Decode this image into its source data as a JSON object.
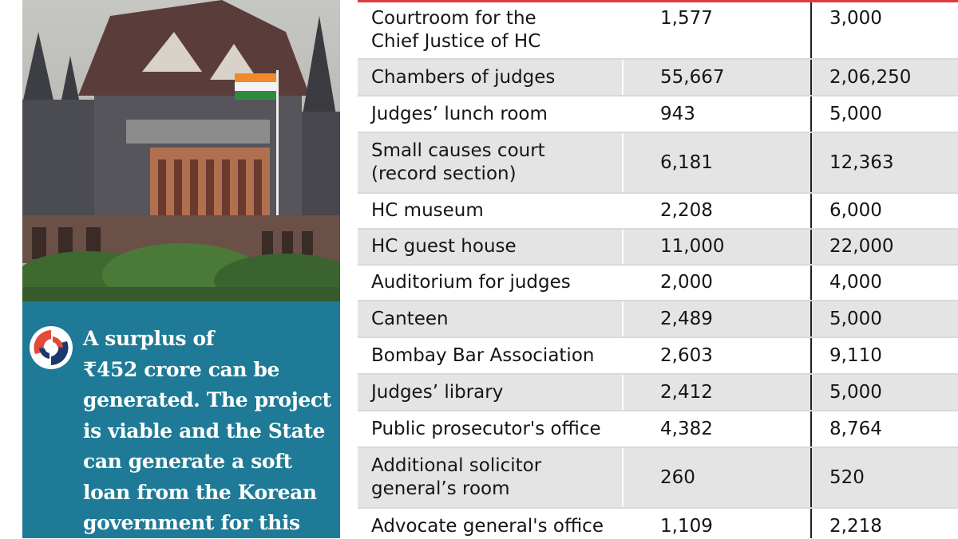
{
  "callout": {
    "quote_lines": "A surplus of\n₹452 crore can be\ngenerated. The project\nis viable and the State\ncan generate a soft\nloan from the Korean\ngovernment for this",
    "accent_colors": [
      "#e24b3c",
      "#1a3a6e",
      "#ffffff"
    ]
  },
  "photo": {
    "icon": "bombay-high-court-building-photo"
  },
  "table": {
    "rows": [
      {
        "name": "Courtroom for the\nChief Justice of HC",
        "a": "1,577",
        "b": "3,000",
        "h": 71,
        "shade": "white"
      },
      {
        "name": "Chambers of judges",
        "a": "55,667",
        "b": "2,06,250",
        "h": 46,
        "shade": "grey"
      },
      {
        "name": "Judges’ lunch room",
        "a": "943",
        "b": "5,000",
        "h": 46,
        "shade": "white"
      },
      {
        "name": "Small causes court\n(record section)",
        "a": "6,181",
        "b": "12,363",
        "h": 76,
        "shade": "grey"
      },
      {
        "name": "HC museum",
        "a": "2,208",
        "b": "6,000",
        "h": 45,
        "shade": "white"
      },
      {
        "name": "HC guest house",
        "a": "11,000",
        "b": "22,000",
        "h": 45,
        "shade": "grey"
      },
      {
        "name": "Auditorium for judges",
        "a": "2,000",
        "b": "4,000",
        "h": 45,
        "shade": "white"
      },
      {
        "name": "Canteen",
        "a": "2,489",
        "b": "5,000",
        "h": 46,
        "shade": "grey"
      },
      {
        "name": "Bombay Bar Association",
        "a": "2,603",
        "b": "9,110",
        "h": 46,
        "shade": "white"
      },
      {
        "name": "Judges’ library",
        "a": "2,412",
        "b": "5,000",
        "h": 46,
        "shade": "grey"
      },
      {
        "name": "Public prosecutor's office",
        "a": "4,382",
        "b": "8,764",
        "h": 46,
        "shade": "white"
      },
      {
        "name": "Additional solicitor\ngeneral’s room",
        "a": "260",
        "b": "520",
        "h": 76,
        "shade": "grey"
      },
      {
        "name": "Advocate general's office",
        "a": "1,109",
        "b": "2,218",
        "h": 46,
        "shade": "white"
      }
    ]
  }
}
